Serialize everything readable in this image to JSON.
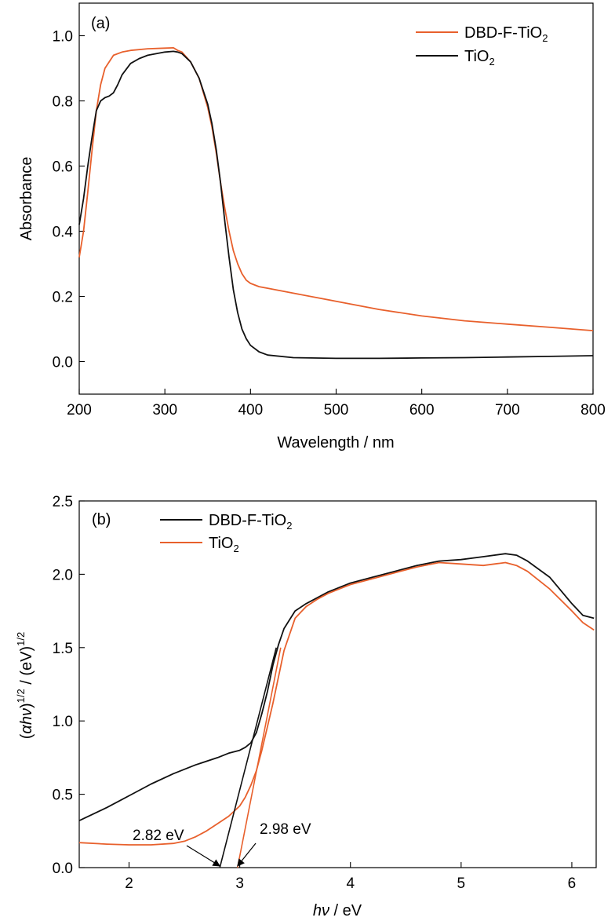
{
  "colors": {
    "orange": "#e8602c",
    "black": "#111111"
  },
  "chart_data": [
    {
      "type": "line",
      "panel_label": "(a)",
      "xlabel": "Wavelength / nm",
      "ylabel": "Absorbance",
      "xlim": [
        200,
        800
      ],
      "ylim": [
        -0.1,
        1.1
      ],
      "xticks": [
        200,
        300,
        400,
        500,
        600,
        700,
        800
      ],
      "yticks": [
        0.0,
        0.2,
        0.4,
        0.6,
        0.8,
        1.0
      ],
      "ytick_labels": [
        "0.0",
        "0.2",
        "0.4",
        "0.6",
        "0.8",
        "1.0"
      ],
      "legend_position": "top-right",
      "series": [
        {
          "name": "DBD-F-TiO",
          "name_sub": "2",
          "color_key": "orange",
          "x": [
            200,
            205,
            210,
            215,
            220,
            225,
            230,
            240,
            250,
            260,
            280,
            300,
            310,
            315,
            320,
            330,
            340,
            350,
            355,
            360,
            365,
            370,
            375,
            380,
            385,
            390,
            395,
            400,
            410,
            420,
            450,
            500,
            550,
            600,
            650,
            700,
            750,
            800
          ],
          "y": [
            0.32,
            0.4,
            0.52,
            0.65,
            0.77,
            0.85,
            0.9,
            0.94,
            0.95,
            0.955,
            0.96,
            0.962,
            0.963,
            0.955,
            0.95,
            0.92,
            0.87,
            0.78,
            0.72,
            0.64,
            0.55,
            0.47,
            0.4,
            0.34,
            0.3,
            0.27,
            0.25,
            0.24,
            0.23,
            0.225,
            0.21,
            0.185,
            0.16,
            0.14,
            0.125,
            0.115,
            0.105,
            0.095
          ]
        },
        {
          "name": "TiO",
          "name_sub": "2",
          "color_key": "black",
          "x": [
            200,
            205,
            210,
            215,
            220,
            225,
            230,
            235,
            240,
            245,
            250,
            260,
            270,
            280,
            300,
            310,
            315,
            320,
            330,
            340,
            350,
            355,
            360,
            365,
            370,
            375,
            380,
            385,
            390,
            395,
            400,
            410,
            420,
            450,
            500,
            550,
            600,
            650,
            700,
            750,
            800
          ],
          "y": [
            0.42,
            0.5,
            0.6,
            0.69,
            0.77,
            0.8,
            0.81,
            0.815,
            0.825,
            0.85,
            0.88,
            0.915,
            0.93,
            0.94,
            0.95,
            0.952,
            0.95,
            0.945,
            0.92,
            0.87,
            0.79,
            0.73,
            0.65,
            0.55,
            0.43,
            0.32,
            0.22,
            0.15,
            0.1,
            0.07,
            0.05,
            0.03,
            0.02,
            0.012,
            0.01,
            0.01,
            0.011,
            0.012,
            0.014,
            0.016,
            0.018
          ]
        }
      ]
    },
    {
      "type": "line",
      "panel_label": "(b)",
      "xlabel_italic": "hν",
      "xlabel_rest": " / eV",
      "ylabel_open": "(",
      "ylabel_italic": "αhν",
      "ylabel_mid": ")",
      "ylabel_sup1": "1/2",
      "ylabel_unit": " / (eV)",
      "ylabel_sup2": "1/2",
      "xlim": [
        1.55,
        6.22
      ],
      "ylim": [
        0.0,
        2.5
      ],
      "xticks": [
        2,
        3,
        4,
        5,
        6
      ],
      "yticks": [
        0.0,
        0.5,
        1.0,
        1.5,
        2.0,
        2.5
      ],
      "ytick_labels": [
        "0.0",
        "0.5",
        "1.0",
        "1.5",
        "2.0",
        "2.5"
      ],
      "legend_position": "top-left",
      "series": [
        {
          "name": "DBD-F-TiO",
          "name_sub": "2",
          "color_key": "black",
          "x": [
            1.55,
            1.8,
            2.0,
            2.2,
            2.4,
            2.6,
            2.8,
            2.9,
            3.0,
            3.05,
            3.1,
            3.15,
            3.2,
            3.25,
            3.3,
            3.35,
            3.4,
            3.5,
            3.6,
            3.7,
            3.8,
            3.9,
            4.0,
            4.2,
            4.4,
            4.6,
            4.8,
            5.0,
            5.2,
            5.4,
            5.5,
            5.6,
            5.8,
            6.0,
            6.1,
            6.2
          ],
          "y": [
            0.32,
            0.41,
            0.49,
            0.57,
            0.64,
            0.7,
            0.75,
            0.78,
            0.8,
            0.82,
            0.85,
            0.92,
            1.05,
            1.2,
            1.38,
            1.52,
            1.63,
            1.75,
            1.8,
            1.84,
            1.88,
            1.91,
            1.94,
            1.98,
            2.02,
            2.06,
            2.09,
            2.1,
            2.12,
            2.14,
            2.13,
            2.09,
            1.98,
            1.8,
            1.72,
            1.7
          ]
        },
        {
          "name": "TiO",
          "name_sub": "2",
          "color_key": "orange",
          "x": [
            1.55,
            1.8,
            2.0,
            2.2,
            2.4,
            2.5,
            2.6,
            2.7,
            2.8,
            2.9,
            3.0,
            3.05,
            3.1,
            3.15,
            3.2,
            3.25,
            3.3,
            3.35,
            3.4,
            3.5,
            3.6,
            3.7,
            3.8,
            3.9,
            4.0,
            4.2,
            4.4,
            4.6,
            4.8,
            5.0,
            5.2,
            5.4,
            5.5,
            5.6,
            5.8,
            6.0,
            6.1,
            6.2
          ],
          "y": [
            0.17,
            0.16,
            0.155,
            0.155,
            0.165,
            0.18,
            0.21,
            0.25,
            0.3,
            0.35,
            0.42,
            0.48,
            0.56,
            0.66,
            0.8,
            0.96,
            1.12,
            1.3,
            1.48,
            1.7,
            1.78,
            1.83,
            1.87,
            1.9,
            1.93,
            1.97,
            2.01,
            2.05,
            2.08,
            2.07,
            2.06,
            2.08,
            2.06,
            2.02,
            1.9,
            1.75,
            1.67,
            1.62
          ]
        }
      ],
      "fit_lines": [
        {
          "color_key": "black",
          "x": [
            2.82,
            3.33
          ],
          "y": [
            0.0,
            1.5
          ]
        },
        {
          "color_key": "orange",
          "x": [
            2.98,
            3.37
          ],
          "y": [
            0.0,
            1.5
          ]
        }
      ],
      "annotations": [
        {
          "text": "2.82 eV",
          "target_x": 2.82,
          "target_y": 0.0
        },
        {
          "text": "2.98 eV",
          "target_x": 2.98,
          "target_y": 0.0
        }
      ]
    }
  ]
}
